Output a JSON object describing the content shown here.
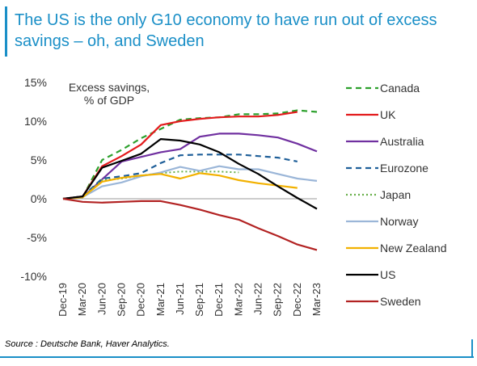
{
  "title": "The US is the only G10 economy to have run out of excess savings – oh, and Sweden",
  "source": "Source : Deutsche Bank, Haver Analytics.",
  "chart_data": {
    "type": "line",
    "title": "",
    "ylabel": "Excess savings,\n% of GDP",
    "ylim": [
      -10,
      15
    ],
    "yticks": [
      15,
      10,
      5,
      0,
      -5,
      -10
    ],
    "ytick_labels": [
      "15%",
      "10%",
      "5%",
      "0%",
      "-5%",
      "-10%"
    ],
    "x": [
      "Dec-19",
      "Mar-20",
      "Jun-20",
      "Sep-20",
      "Dec-20",
      "Mar-21",
      "Jun-21",
      "Sep-21",
      "Dec-21",
      "Mar-22",
      "Jun-22",
      "Sep-22",
      "Dec-22",
      "Mar-23"
    ],
    "legend_position": "right",
    "grid": false,
    "series": [
      {
        "name": "Canada",
        "color": "#2ca02c",
        "dash": "dash",
        "values": [
          0,
          0.2,
          5.0,
          6.3,
          7.8,
          9.0,
          10.2,
          10.4,
          10.5,
          10.9,
          10.9,
          11.0,
          11.4,
          11.2
        ]
      },
      {
        "name": "UK",
        "color": "#e31a1c",
        "dash": "solid",
        "values": [
          0,
          0.3,
          4.2,
          5.5,
          7.0,
          9.5,
          10.0,
          10.3,
          10.5,
          10.6,
          10.6,
          10.8,
          11.2,
          null
        ]
      },
      {
        "name": "Australia",
        "color": "#7030a0",
        "dash": "solid",
        "values": [
          0,
          0.2,
          2.5,
          4.8,
          5.4,
          6.0,
          6.4,
          8.0,
          8.4,
          8.4,
          8.2,
          7.9,
          7.1,
          6.1
        ]
      },
      {
        "name": "Eurozone",
        "color": "#1f5f99",
        "dash": "dash",
        "values": [
          0,
          0.3,
          2.6,
          2.9,
          3.3,
          4.6,
          5.6,
          5.7,
          5.7,
          5.7,
          5.5,
          5.3,
          4.8,
          null
        ]
      },
      {
        "name": "Japan",
        "color": "#6ab04c",
        "dash": "dot",
        "values": [
          0,
          0.2,
          2.4,
          2.6,
          3.0,
          3.3,
          3.5,
          3.5,
          3.5,
          3.4,
          null,
          null,
          null,
          null
        ]
      },
      {
        "name": "Norway",
        "color": "#9bb6d8",
        "dash": "solid",
        "values": [
          0,
          0.2,
          1.6,
          2.1,
          2.9,
          3.4,
          4.1,
          3.6,
          4.2,
          3.8,
          3.8,
          3.2,
          2.6,
          2.3
        ]
      },
      {
        "name": "New Zealand",
        "color": "#f2b100",
        "dash": "solid",
        "values": [
          0,
          0.2,
          2.2,
          2.7,
          3.0,
          3.2,
          2.6,
          3.3,
          3.0,
          2.4,
          2.0,
          1.7,
          1.4,
          null
        ]
      },
      {
        "name": "US",
        "color": "#000000",
        "dash": "solid",
        "values": [
          0,
          0.3,
          4.0,
          4.9,
          5.8,
          7.7,
          7.5,
          7.0,
          6.0,
          4.5,
          3.2,
          1.6,
          0.1,
          -1.3
        ]
      },
      {
        "name": "Sweden",
        "color": "#b22222",
        "dash": "solid",
        "values": [
          0,
          -0.4,
          -0.5,
          -0.4,
          -0.3,
          -0.3,
          -0.8,
          -1.4,
          -2.1,
          -2.7,
          -3.8,
          -4.8,
          -5.9,
          -6.6
        ]
      }
    ]
  }
}
